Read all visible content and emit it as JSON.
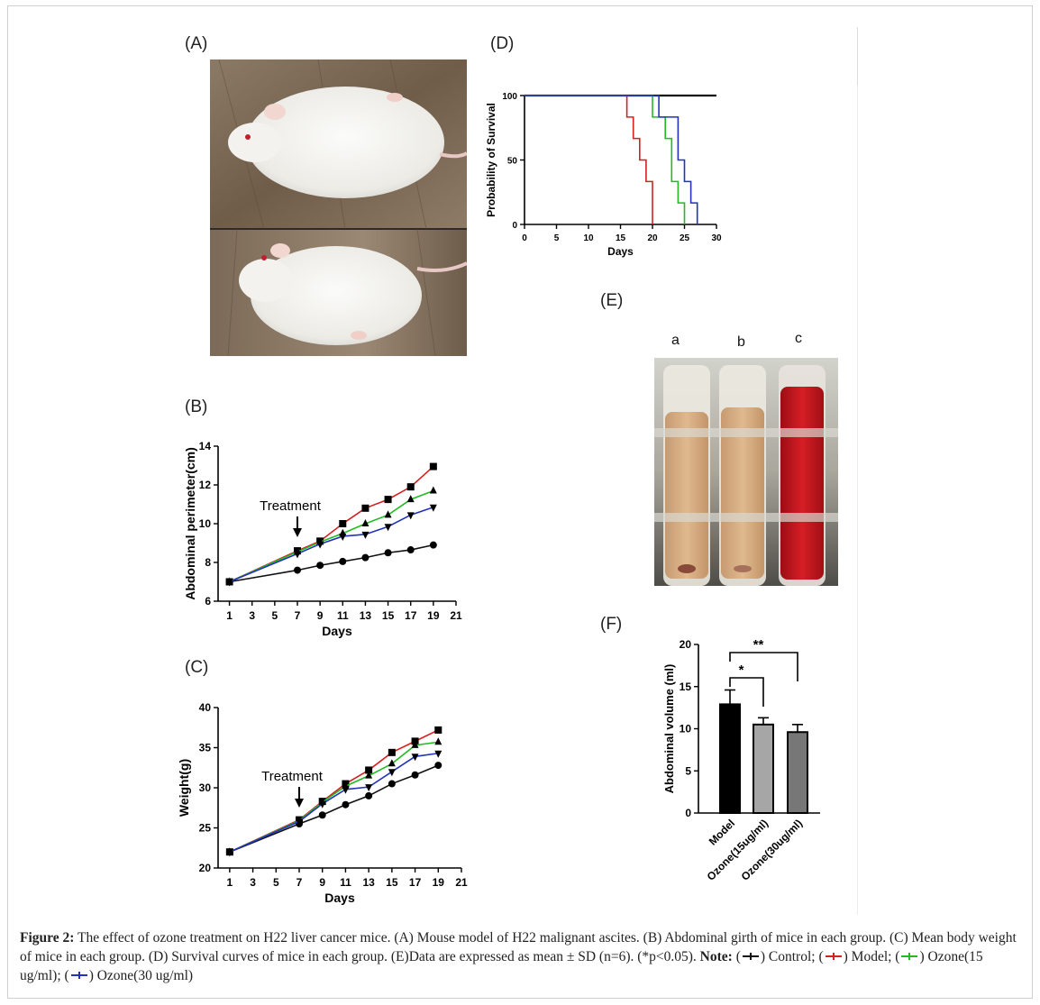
{
  "panels": {
    "A": "(A)",
    "B": "(B)",
    "C": "(C)",
    "D": "(D)",
    "E": "(E)",
    "F": "(F)"
  },
  "tube_labels": [
    "a",
    "b",
    "c"
  ],
  "colors": {
    "control": "#111111",
    "model": "#d42020",
    "ozone15": "#22bb22",
    "ozone30": "#2233bb",
    "bar_model": "#000000",
    "bar_o15": "#a6a6a6",
    "bar_o30": "#777777"
  },
  "chart_data": [
    {
      "id": "B",
      "type": "line",
      "ylabel": "Abdominal perimeter(cm)",
      "xlabel": "Days",
      "xlim": [
        0,
        21
      ],
      "ylim": [
        6,
        14
      ],
      "xticks": [
        1,
        3,
        5,
        7,
        9,
        11,
        13,
        15,
        17,
        19,
        21
      ],
      "yticks": [
        6,
        8,
        10,
        12,
        14
      ],
      "annotation": "Treatment",
      "annotation_x": 7,
      "x": [
        1,
        7,
        9,
        11,
        13,
        15,
        17,
        19
      ],
      "series": [
        {
          "key": "control",
          "marker": "circle",
          "values": [
            7.0,
            7.6,
            7.85,
            8.05,
            8.25,
            8.5,
            8.65,
            8.9
          ]
        },
        {
          "key": "model",
          "marker": "square",
          "values": [
            7.0,
            8.6,
            9.1,
            10.0,
            10.8,
            11.25,
            11.9,
            12.95
          ]
        },
        {
          "key": "ozone15",
          "marker": "triangle",
          "values": [
            7.0,
            8.55,
            9.05,
            9.5,
            10.0,
            10.45,
            11.25,
            11.7
          ]
        },
        {
          "key": "ozone30",
          "marker": "triangle-down",
          "values": [
            7.0,
            8.45,
            8.95,
            9.35,
            9.45,
            9.85,
            10.45,
            10.85
          ]
        }
      ]
    },
    {
      "id": "C",
      "type": "line",
      "ylabel": "Weight(g)",
      "xlabel": "Days",
      "xlim": [
        0,
        21
      ],
      "ylim": [
        20,
        40
      ],
      "xticks": [
        1,
        3,
        5,
        7,
        9,
        11,
        13,
        15,
        17,
        19,
        21
      ],
      "yticks": [
        20,
        25,
        30,
        35,
        40
      ],
      "annotation": "Treatment",
      "annotation_x": 7,
      "x": [
        1,
        7,
        9,
        11,
        13,
        15,
        17,
        19
      ],
      "series": [
        {
          "key": "control",
          "marker": "circle",
          "values": [
            22.0,
            25.5,
            26.6,
            27.9,
            29.0,
            30.5,
            31.6,
            32.8
          ]
        },
        {
          "key": "model",
          "marker": "square",
          "values": [
            22.0,
            26.0,
            28.3,
            30.5,
            32.2,
            34.4,
            35.8,
            37.2
          ]
        },
        {
          "key": "ozone15",
          "marker": "triangle",
          "values": [
            22.0,
            25.9,
            28.2,
            30.2,
            31.5,
            33.0,
            35.3,
            35.7
          ]
        },
        {
          "key": "ozone30",
          "marker": "triangle-down",
          "values": [
            22.0,
            25.8,
            28.0,
            29.8,
            30.1,
            32.0,
            33.9,
            34.3
          ]
        }
      ]
    },
    {
      "id": "D",
      "type": "line",
      "ylabel": "Probability of Survival",
      "xlabel": "Days",
      "xlim": [
        0,
        30
      ],
      "ylim": [
        0,
        100
      ],
      "xticks": [
        0,
        5,
        10,
        15,
        20,
        25,
        30
      ],
      "yticks": [
        0,
        50,
        100
      ],
      "series": [
        {
          "key": "control",
          "steps": [
            [
              0,
              100
            ],
            [
              30,
              100
            ]
          ]
        },
        {
          "key": "model",
          "steps": [
            [
              0,
              100
            ],
            [
              16,
              100
            ],
            [
              16,
              83.3
            ],
            [
              17,
              83.3
            ],
            [
              17,
              66.7
            ],
            [
              18,
              66.7
            ],
            [
              18,
              50
            ],
            [
              19,
              50
            ],
            [
              19,
              33.3
            ],
            [
              20,
              33.3
            ],
            [
              20,
              0
            ]
          ]
        },
        {
          "key": "ozone15",
          "steps": [
            [
              0,
              100
            ],
            [
              20,
              100
            ],
            [
              20,
              83.3
            ],
            [
              22,
              83.3
            ],
            [
              22,
              66.7
            ],
            [
              23,
              66.7
            ],
            [
              23,
              33.3
            ],
            [
              24,
              33.3
            ],
            [
              24,
              16.7
            ],
            [
              25,
              16.7
            ],
            [
              25,
              0
            ]
          ]
        },
        {
          "key": "ozone30",
          "steps": [
            [
              0,
              100
            ],
            [
              21,
              100
            ],
            [
              21,
              83.3
            ],
            [
              24,
              83.3
            ],
            [
              24,
              50
            ],
            [
              25,
              50
            ],
            [
              25,
              33.3
            ],
            [
              26,
              33.3
            ],
            [
              26,
              16.7
            ],
            [
              27,
              16.7
            ],
            [
              27,
              0
            ]
          ]
        }
      ]
    },
    {
      "id": "F",
      "type": "bar",
      "ylabel": "Abdominal volume (ml)",
      "ylim": [
        0,
        20
      ],
      "yticks": [
        0,
        5,
        10,
        15,
        20
      ],
      "categories": [
        "Model",
        "Ozone(15ug/ml)",
        "Ozone(30ug/ml)"
      ],
      "values": [
        12.9,
        10.5,
        9.6
      ],
      "errors": [
        1.7,
        0.8,
        0.9
      ],
      "significance": [
        {
          "from": 0,
          "to": 1,
          "label": "*"
        },
        {
          "from": 0,
          "to": 2,
          "label": "**"
        }
      ]
    }
  ],
  "caption": {
    "figure_label": "Figure 2:",
    "text": " The effect of ozone treatment on H22 liver cancer mice. (A) Mouse model of H22 malignant ascites. (B) Abdominal girth of mice in each group. (C) Mean body weight of mice in each group. (D) Survival curves of mice in each group. (E)Data are expressed as mean ± SD (n=6). (*p<0.05). ",
    "note_label": "Note:",
    "legend": [
      {
        "key": "control",
        "text": ") Control; ("
      },
      {
        "key": "model",
        "text": ") Model; ("
      },
      {
        "key": "ozone15",
        "text": ") Ozone(15 ug/ml); ("
      },
      {
        "key": "ozone30",
        "text": ") Ozone(30 ug/ml)"
      }
    ]
  }
}
